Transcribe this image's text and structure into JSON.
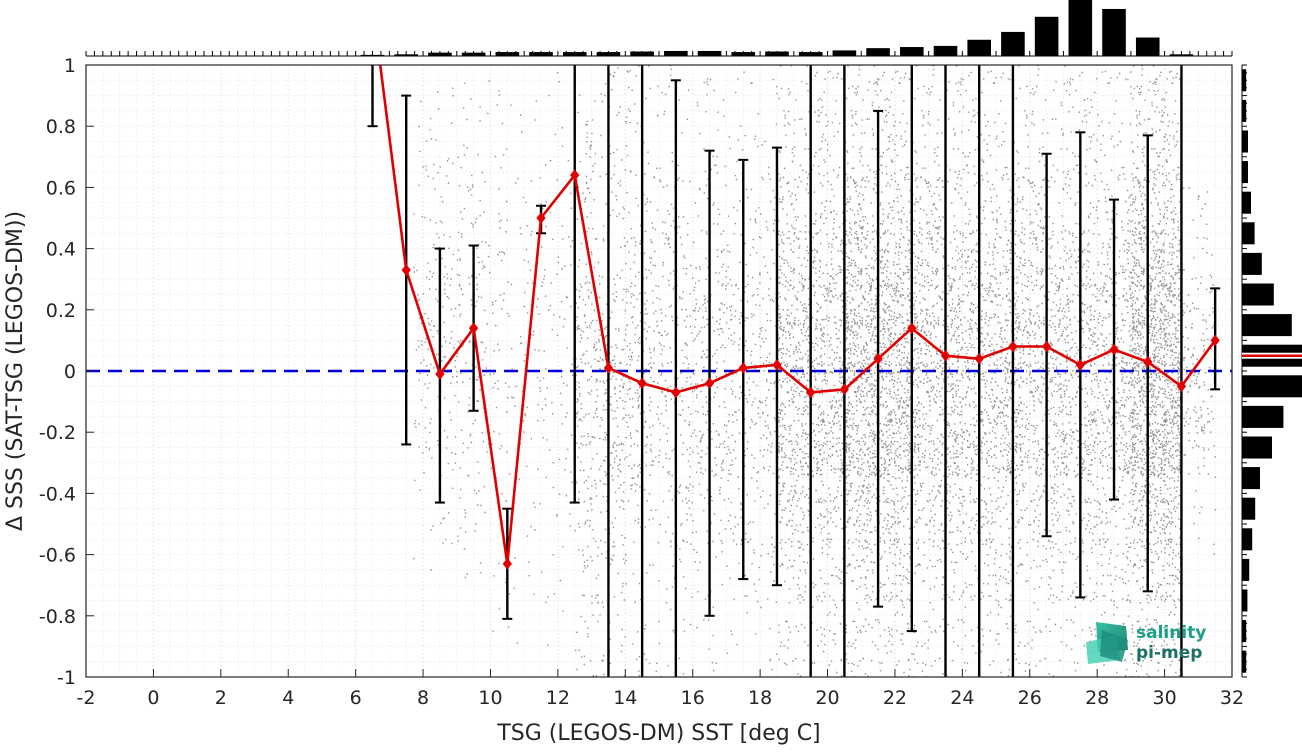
{
  "chart_data": {
    "type": "scatter",
    "xlabel": "TSG (LEGOS-DM) SST [deg C]",
    "ylabel": "Δ SSS (SAT-TSG (LEGOS-DM))",
    "xlim": [
      -2,
      32
    ],
    "ylim": [
      -1,
      1
    ],
    "xticks": [
      -2,
      0,
      2,
      4,
      6,
      8,
      10,
      12,
      14,
      16,
      18,
      20,
      22,
      24,
      26,
      28,
      30,
      32
    ],
    "yticks": [
      -1,
      -0.8,
      -0.6,
      -0.4,
      -0.2,
      0,
      0.2,
      0.4,
      0.6,
      0.8,
      1
    ],
    "ytick_labels": [
      "-1",
      "-0.8",
      "-0.6",
      "-0.4",
      "-0.2",
      "0",
      "0.2",
      "0.4",
      "0.6",
      "0.8",
      "1"
    ],
    "xtick_labels": [
      "-2",
      "0",
      "2",
      "4",
      "6",
      "8",
      "10",
      "12",
      "14",
      "16",
      "18",
      "20",
      "22",
      "24",
      "26",
      "28",
      "30",
      "32"
    ],
    "grid": true,
    "zero_line": {
      "y": 0,
      "color": "#0000dd",
      "style": "dashed"
    },
    "binned_stats": {
      "color": "#e00000",
      "x": [
        6.5,
        7.5,
        8.5,
        9.5,
        10.5,
        11.5,
        12.5,
        13.5,
        14.5,
        15.5,
        16.5,
        17.5,
        18.5,
        19.5,
        20.5,
        21.5,
        22.5,
        23.5,
        24.5,
        25.5,
        26.5,
        27.5,
        28.5,
        29.5,
        30.5,
        31.5
      ],
      "mean": [
        1.2,
        0.33,
        -0.01,
        0.14,
        -0.63,
        0.5,
        0.64,
        0.01,
        -0.04,
        -0.07,
        -0.04,
        0.01,
        0.02,
        -0.07,
        -0.06,
        0.04,
        0.14,
        0.05,
        0.04,
        0.08,
        0.08,
        0.02,
        0.07,
        0.03,
        -0.05,
        0.1
      ],
      "std_low": [
        0.8,
        -0.24,
        -0.43,
        -0.13,
        -0.81,
        0.45,
        -0.43,
        -1.0,
        -1.0,
        -1.0,
        -0.8,
        -0.68,
        -0.7,
        -1.0,
        -1.0,
        -0.77,
        -0.85,
        -1.0,
        -1.0,
        -1.0,
        -0.54,
        -0.74,
        -0.42,
        -0.72,
        -1.0,
        -0.06
      ],
      "std_high": [
        1.0,
        0.9,
        0.4,
        0.41,
        -0.45,
        0.54,
        1.0,
        1.0,
        1.0,
        0.95,
        0.72,
        0.69,
        0.73,
        1.0,
        1.0,
        0.85,
        1.0,
        1.0,
        1.0,
        1.0,
        0.71,
        0.78,
        0.56,
        0.77,
        1.0,
        0.27
      ]
    },
    "top_histogram": {
      "bins_x": [
        6.5,
        7.5,
        8.5,
        9.5,
        10.5,
        11.5,
        12.5,
        13.5,
        14.5,
        15.5,
        16.5,
        17.5,
        18.5,
        19.5,
        20.5,
        21.5,
        22.5,
        23.5,
        24.5,
        25.5,
        26.5,
        27.5,
        28.5,
        29.5,
        30.5
      ],
      "rel_counts": [
        0.02,
        0.03,
        0.06,
        0.06,
        0.07,
        0.07,
        0.07,
        0.07,
        0.08,
        0.09,
        0.09,
        0.07,
        0.08,
        0.07,
        0.1,
        0.14,
        0.16,
        0.18,
        0.29,
        0.43,
        0.7,
        1.0,
        0.84,
        0.33,
        0.03
      ]
    },
    "right_histogram": {
      "bins_y": [
        0.95,
        0.85,
        0.75,
        0.65,
        0.55,
        0.45,
        0.35,
        0.25,
        0.15,
        0.05,
        -0.05,
        -0.15,
        -0.25,
        -0.35,
        -0.45,
        -0.55,
        -0.65,
        -0.75,
        -0.85,
        -0.95
      ],
      "rel_counts": [
        0.07,
        0.07,
        0.1,
        0.1,
        0.15,
        0.21,
        0.33,
        0.53,
        0.83,
        1.0,
        1.0,
        0.69,
        0.5,
        0.3,
        0.22,
        0.17,
        0.12,
        0.09,
        0.07,
        0.07
      ],
      "mean_line": {
        "y": 0.05,
        "color": "#e00000"
      }
    },
    "scatter_density": {
      "color": "#7f7f7f",
      "note_bins": [
        {
          "x0": 7.7,
          "x1": 9.8,
          "y0": -0.7,
          "y1": 0.95,
          "density": 0.04
        },
        {
          "x0": 9.8,
          "x1": 12.5,
          "y0": -0.9,
          "y1": 1.0,
          "density": 0.03
        },
        {
          "x0": 12.5,
          "x1": 14.5,
          "y0": -1.0,
          "y1": 1.0,
          "density": 0.08
        },
        {
          "x0": 14.5,
          "x1": 18.5,
          "y0": -1.0,
          "y1": 1.0,
          "density": 0.12
        },
        {
          "x0": 18.5,
          "x1": 20.5,
          "y0": -1.0,
          "y1": 1.0,
          "density": 0.15
        },
        {
          "x0": 20.5,
          "x1": 22.5,
          "y0": -1.0,
          "y1": 1.0,
          "density": 0.35
        },
        {
          "x0": 22.5,
          "x1": 25.5,
          "y0": -1.0,
          "y1": 1.0,
          "density": 0.5
        },
        {
          "x0": 25.5,
          "x1": 29.0,
          "y0": -1.0,
          "y1": 1.0,
          "density": 0.7
        },
        {
          "x0": 29.0,
          "x1": 30.5,
          "y0": -1.0,
          "y1": 1.0,
          "density": 0.35
        },
        {
          "x0": 30.5,
          "x1": 31.5,
          "y0": -0.6,
          "y1": 0.6,
          "density": 0.02
        }
      ]
    }
  },
  "logo": {
    "line1": "salinity",
    "line2": "pi-mep",
    "color": "#1aa088"
  }
}
